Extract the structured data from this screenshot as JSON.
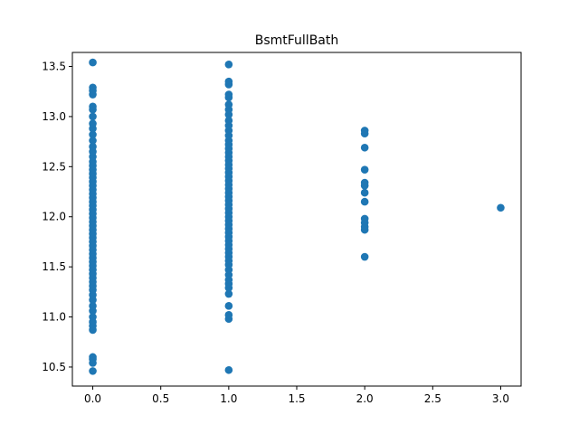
{
  "chart_data": {
    "type": "scatter",
    "title": "BsmtFullBath",
    "xlabel": "",
    "ylabel": "",
    "xlim": [
      -0.15,
      3.15
    ],
    "ylim": [
      10.31,
      13.64
    ],
    "xticks": [
      {
        "value": 0.0,
        "label": "0.0"
      },
      {
        "value": 0.5,
        "label": "0.5"
      },
      {
        "value": 1.0,
        "label": "1.0"
      },
      {
        "value": 1.5,
        "label": "1.5"
      },
      {
        "value": 2.0,
        "label": "2.0"
      },
      {
        "value": 2.5,
        "label": "2.5"
      },
      {
        "value": 3.0,
        "label": "3.0"
      }
    ],
    "yticks": [
      {
        "value": 10.5,
        "label": "10.5"
      },
      {
        "value": 11.0,
        "label": "11.0"
      },
      {
        "value": 11.5,
        "label": "11.5"
      },
      {
        "value": 12.0,
        "label": "12.0"
      },
      {
        "value": 12.5,
        "label": "12.5"
      },
      {
        "value": 13.0,
        "label": "13.0"
      },
      {
        "value": 13.5,
        "label": "13.5"
      }
    ],
    "grid": false,
    "legend": "none",
    "marker_color": "#1f77b4",
    "series": [
      {
        "points": [
          {
            "x": 0,
            "y": 10.46
          },
          {
            "x": 0,
            "y": 10.54
          },
          {
            "x": 0,
            "y": 10.58
          },
          {
            "x": 0,
            "y": 10.6
          },
          {
            "x": 0,
            "y": 10.87
          },
          {
            "x": 0,
            "y": 10.91
          },
          {
            "x": 0,
            "y": 10.95
          },
          {
            "x": 0,
            "y": 11.0
          },
          {
            "x": 0,
            "y": 11.06
          },
          {
            "x": 0,
            "y": 11.11
          },
          {
            "x": 0,
            "y": 11.17
          },
          {
            "x": 0,
            "y": 11.22
          },
          {
            "x": 0,
            "y": 11.27
          },
          {
            "x": 0,
            "y": 11.31
          },
          {
            "x": 0,
            "y": 11.35
          },
          {
            "x": 0,
            "y": 11.39
          },
          {
            "x": 0,
            "y": 11.43
          },
          {
            "x": 0,
            "y": 11.47
          },
          {
            "x": 0,
            "y": 11.51
          },
          {
            "x": 0,
            "y": 11.55
          },
          {
            "x": 0,
            "y": 11.59
          },
          {
            "x": 0,
            "y": 11.63
          },
          {
            "x": 0,
            "y": 11.67
          },
          {
            "x": 0,
            "y": 11.71
          },
          {
            "x": 0,
            "y": 11.75
          },
          {
            "x": 0,
            "y": 11.79
          },
          {
            "x": 0,
            "y": 11.83
          },
          {
            "x": 0,
            "y": 11.87
          },
          {
            "x": 0,
            "y": 11.91
          },
          {
            "x": 0,
            "y": 11.95
          },
          {
            "x": 0,
            "y": 11.99
          },
          {
            "x": 0,
            "y": 12.03
          },
          {
            "x": 0,
            "y": 12.07
          },
          {
            "x": 0,
            "y": 12.11
          },
          {
            "x": 0,
            "y": 12.15
          },
          {
            "x": 0,
            "y": 12.19
          },
          {
            "x": 0,
            "y": 12.23
          },
          {
            "x": 0,
            "y": 12.27
          },
          {
            "x": 0,
            "y": 12.31
          },
          {
            "x": 0,
            "y": 12.35
          },
          {
            "x": 0,
            "y": 12.39
          },
          {
            "x": 0,
            "y": 12.43
          },
          {
            "x": 0,
            "y": 12.47
          },
          {
            "x": 0,
            "y": 12.51
          },
          {
            "x": 0,
            "y": 12.55
          },
          {
            "x": 0,
            "y": 12.6
          },
          {
            "x": 0,
            "y": 12.65
          },
          {
            "x": 0,
            "y": 12.7
          },
          {
            "x": 0,
            "y": 12.76
          },
          {
            "x": 0,
            "y": 12.82
          },
          {
            "x": 0,
            "y": 12.88
          },
          {
            "x": 0,
            "y": 12.93
          },
          {
            "x": 0,
            "y": 13.0
          },
          {
            "x": 0,
            "y": 13.07
          },
          {
            "x": 0,
            "y": 13.1
          },
          {
            "x": 0,
            "y": 13.22
          },
          {
            "x": 0,
            "y": 13.26
          },
          {
            "x": 0,
            "y": 13.29
          },
          {
            "x": 0,
            "y": 13.54
          },
          {
            "x": 1,
            "y": 10.47
          },
          {
            "x": 1,
            "y": 10.98
          },
          {
            "x": 1,
            "y": 11.02
          },
          {
            "x": 1,
            "y": 11.11
          },
          {
            "x": 1,
            "y": 11.23
          },
          {
            "x": 1,
            "y": 11.29
          },
          {
            "x": 1,
            "y": 11.33
          },
          {
            "x": 1,
            "y": 11.37
          },
          {
            "x": 1,
            "y": 11.42
          },
          {
            "x": 1,
            "y": 11.47
          },
          {
            "x": 1,
            "y": 11.52
          },
          {
            "x": 1,
            "y": 11.56
          },
          {
            "x": 1,
            "y": 11.6
          },
          {
            "x": 1,
            "y": 11.64
          },
          {
            "x": 1,
            "y": 11.68
          },
          {
            "x": 1,
            "y": 11.72
          },
          {
            "x": 1,
            "y": 11.76
          },
          {
            "x": 1,
            "y": 11.8
          },
          {
            "x": 1,
            "y": 11.84
          },
          {
            "x": 1,
            "y": 11.88
          },
          {
            "x": 1,
            "y": 11.92
          },
          {
            "x": 1,
            "y": 11.96
          },
          {
            "x": 1,
            "y": 12.0
          },
          {
            "x": 1,
            "y": 12.04
          },
          {
            "x": 1,
            "y": 12.08
          },
          {
            "x": 1,
            "y": 12.12
          },
          {
            "x": 1,
            "y": 12.16
          },
          {
            "x": 1,
            "y": 12.2
          },
          {
            "x": 1,
            "y": 12.24
          },
          {
            "x": 1,
            "y": 12.28
          },
          {
            "x": 1,
            "y": 12.32
          },
          {
            "x": 1,
            "y": 12.36
          },
          {
            "x": 1,
            "y": 12.4
          },
          {
            "x": 1,
            "y": 12.44
          },
          {
            "x": 1,
            "y": 12.48
          },
          {
            "x": 1,
            "y": 12.52
          },
          {
            "x": 1,
            "y": 12.56
          },
          {
            "x": 1,
            "y": 12.6
          },
          {
            "x": 1,
            "y": 12.64
          },
          {
            "x": 1,
            "y": 12.68
          },
          {
            "x": 1,
            "y": 12.72
          },
          {
            "x": 1,
            "y": 12.76
          },
          {
            "x": 1,
            "y": 12.81
          },
          {
            "x": 1,
            "y": 12.86
          },
          {
            "x": 1,
            "y": 12.91
          },
          {
            "x": 1,
            "y": 12.96
          },
          {
            "x": 1,
            "y": 13.02
          },
          {
            "x": 1,
            "y": 13.07
          },
          {
            "x": 1,
            "y": 13.12
          },
          {
            "x": 1,
            "y": 13.19
          },
          {
            "x": 1,
            "y": 13.22
          },
          {
            "x": 1,
            "y": 13.32
          },
          {
            "x": 1,
            "y": 13.35
          },
          {
            "x": 1,
            "y": 13.52
          },
          {
            "x": 2,
            "y": 11.6
          },
          {
            "x": 2,
            "y": 11.87
          },
          {
            "x": 2,
            "y": 11.9
          },
          {
            "x": 2,
            "y": 11.94
          },
          {
            "x": 2,
            "y": 11.98
          },
          {
            "x": 2,
            "y": 12.15
          },
          {
            "x": 2,
            "y": 12.24
          },
          {
            "x": 2,
            "y": 12.31
          },
          {
            "x": 2,
            "y": 12.34
          },
          {
            "x": 2,
            "y": 12.47
          },
          {
            "x": 2,
            "y": 12.69
          },
          {
            "x": 2,
            "y": 12.83
          },
          {
            "x": 2,
            "y": 12.86
          },
          {
            "x": 3,
            "y": 12.09
          }
        ]
      }
    ]
  }
}
